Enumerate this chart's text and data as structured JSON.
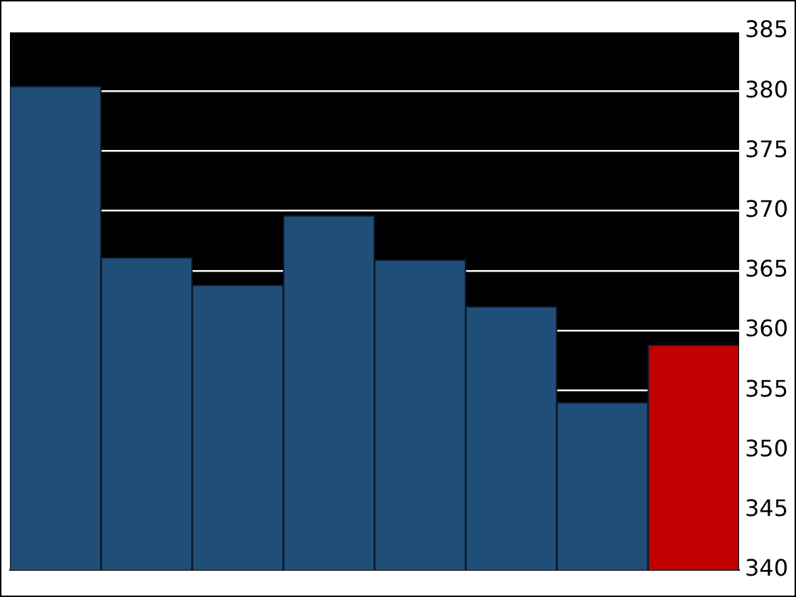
{
  "chart_data": {
    "type": "bar",
    "categories": [
      null,
      null,
      null,
      null,
      null,
      null,
      null,
      null
    ],
    "values": [
      380.4,
      366.1,
      363.8,
      369.6,
      365.9,
      362.0,
      354.0,
      358.8
    ],
    "colors": [
      "#1f4e79",
      "#1f4e79",
      "#1f4e79",
      "#1f4e79",
      "#1f4e79",
      "#1f4e79",
      "#1f4e79",
      "#c00000"
    ],
    "ylim": [
      340,
      385
    ],
    "yticks": [
      340,
      345,
      350,
      355,
      360,
      365,
      370,
      375,
      380,
      385
    ],
    "grid": true
  }
}
